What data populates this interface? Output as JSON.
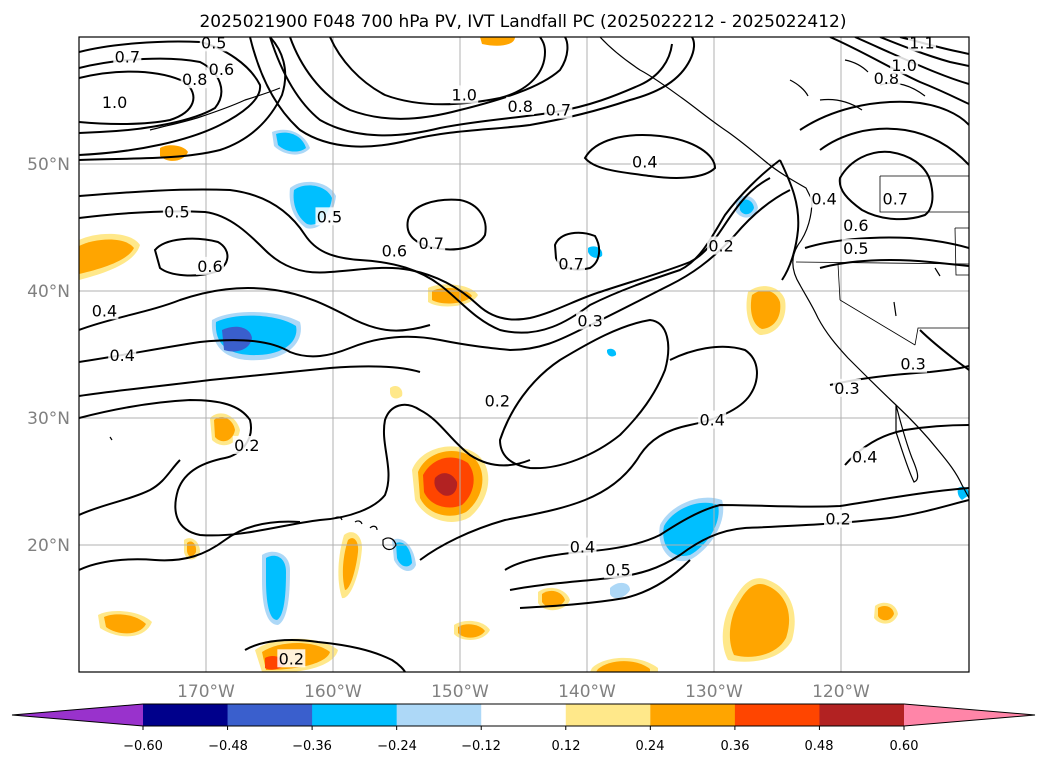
{
  "title": "2025021900 F048 700 hPa PV, IVT Landfall PC (2025022212 - 2025022412)",
  "axes": {
    "lon_ticks": [
      "170°W",
      "160°W",
      "150°W",
      "140°W",
      "130°W",
      "120°W"
    ],
    "lat_ticks": [
      "50°N",
      "40°N",
      "30°N",
      "20°N"
    ],
    "extent": {
      "lon": [
        -180,
        -110
      ],
      "lat": [
        10,
        60
      ]
    }
  },
  "colorbar": {
    "ticks": [
      "−0.60",
      "−0.48",
      "−0.36",
      "−0.24",
      "−0.12",
      "0.12",
      "0.24",
      "0.36",
      "0.48",
      "0.60"
    ],
    "colors": [
      "#9932cc",
      "#00008b",
      "#3a5fcd",
      "#00bfff",
      "#add8f7",
      "#ffffff",
      "#ffe88a",
      "#ffa500",
      "#ff4500",
      "#b22222",
      "#ff85a8"
    ],
    "extend": "both"
  },
  "contour_labels": [
    {
      "text": "0.7",
      "lon": -176.2,
      "lat": 58.4
    },
    {
      "text": "0.6",
      "lon": -168.8,
      "lat": 57.4
    },
    {
      "text": "0.8",
      "lon": -170.9,
      "lat": 56.6
    },
    {
      "text": "1.0",
      "lon": -177.2,
      "lat": 54.8
    },
    {
      "text": "0.5",
      "lon": -172.3,
      "lat": 46.2
    },
    {
      "text": "0.6",
      "lon": -169.7,
      "lat": 41.9
    },
    {
      "text": "0.4",
      "lon": -178.0,
      "lat": 38.4
    },
    {
      "text": "0.4",
      "lon": -176.6,
      "lat": 34.9
    },
    {
      "text": "0.5",
      "lon": -160.3,
      "lat": 45.8
    },
    {
      "text": "0.6",
      "lon": -155.2,
      "lat": 43.1
    },
    {
      "text": "0.7",
      "lon": -152.3,
      "lat": 43.7
    },
    {
      "text": "1.0",
      "lon": -149.7,
      "lat": 55.4
    },
    {
      "text": "0.8",
      "lon": -145.3,
      "lat": 54.5
    },
    {
      "text": "0.7",
      "lon": -142.3,
      "lat": 54.2
    },
    {
      "text": "0.4",
      "lon": -135.5,
      "lat": 50.1
    },
    {
      "text": "0.7",
      "lon": -141.3,
      "lat": 42.1
    },
    {
      "text": "0.3",
      "lon": -139.8,
      "lat": 37.6
    },
    {
      "text": "0.2",
      "lon": -147.1,
      "lat": 31.3
    },
    {
      "text": "0.4",
      "lon": -130.2,
      "lat": 29.8
    },
    {
      "text": "0.2",
      "lon": -129.5,
      "lat": 43.5
    },
    {
      "text": "0.6",
      "lon": -118.9,
      "lat": 45.1
    },
    {
      "text": "0.5",
      "lon": -118.9,
      "lat": 43.3
    },
    {
      "text": "0.4",
      "lon": -121.4,
      "lat": 47.2
    },
    {
      "text": "0.7",
      "lon": -115.8,
      "lat": 47.2
    },
    {
      "text": "0.8",
      "lon": -116.5,
      "lat": 56.7
    },
    {
      "text": "1.0",
      "lon": -115.1,
      "lat": 57.7
    },
    {
      "text": "1.1",
      "lon": -113.7,
      "lat": 59.5
    },
    {
      "text": "0.3",
      "lon": -114.4,
      "lat": 34.2
    },
    {
      "text": "0.3",
      "lon": -119.6,
      "lat": 32.3
    },
    {
      "text": "0.4",
      "lon": -118.2,
      "lat": 26.9
    },
    {
      "text": "0.2",
      "lon": -166.8,
      "lat": 27.8
    },
    {
      "text": "0.4",
      "lon": -140.4,
      "lat": 19.8
    },
    {
      "text": "0.5",
      "lon": -137.6,
      "lat": 18.0
    },
    {
      "text": "0.2",
      "lon": -120.3,
      "lat": 22.0
    },
    {
      "text": "0.2",
      "lon": -163.3,
      "lat": 11.0
    },
    {
      "text": "0.5",
      "lon": -169.4,
      "lat": 59.5
    }
  ],
  "shading_regions": [
    {
      "name": "central-pacific-positive-max",
      "value": 0.48,
      "lon": -151,
      "lat": 25
    },
    {
      "name": "southwest-pos-near-hawaii",
      "value": 0.36,
      "lon": -161,
      "lat": 11
    },
    {
      "name": "subtropical-neg-center",
      "value": -0.36,
      "lon": -133,
      "lat": 21
    },
    {
      "name": "north-pacific-neg-center",
      "value": -0.48,
      "lon": -162,
      "lat": 36
    },
    {
      "name": "baja-pos-center",
      "value": 0.24,
      "lon": -127,
      "lat": 14
    },
    {
      "name": "california-coast-pos",
      "value": 0.24,
      "lon": -127,
      "lat": 38
    }
  ]
}
